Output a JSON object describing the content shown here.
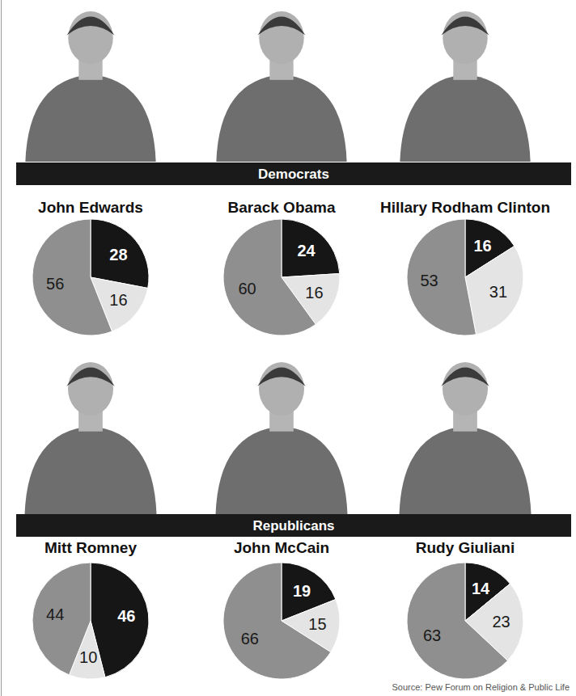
{
  "sections": [
    "Democrats",
    "Republicans"
  ],
  "source": "Source: Pew Forum on Religion & Public Life",
  "chart_data": [
    {
      "type": "pie",
      "title": "John Edwards",
      "categories": [
        null,
        null,
        null
      ],
      "values": [
        28,
        16,
        56
      ],
      "colors": [
        "#161616",
        "#e4e4e4",
        "#8f8f8f"
      ],
      "data_labels": true
    },
    {
      "type": "pie",
      "title": "Barack Obama",
      "categories": [
        null,
        null,
        null
      ],
      "values": [
        24,
        16,
        60
      ],
      "colors": [
        "#161616",
        "#e4e4e4",
        "#8f8f8f"
      ],
      "data_labels": true
    },
    {
      "type": "pie",
      "title": "Hillary Rodham Clinton",
      "categories": [
        null,
        null,
        null
      ],
      "values": [
        16,
        31,
        53
      ],
      "colors": [
        "#161616",
        "#e4e4e4",
        "#8f8f8f"
      ],
      "data_labels": true
    },
    {
      "type": "pie",
      "title": "Mitt Romney",
      "categories": [
        null,
        null,
        null
      ],
      "values": [
        46,
        10,
        44
      ],
      "colors": [
        "#161616",
        "#e4e4e4",
        "#8f8f8f"
      ],
      "data_labels": true
    },
    {
      "type": "pie",
      "title": "John McCain",
      "categories": [
        null,
        null,
        null
      ],
      "values": [
        19,
        15,
        66
      ],
      "colors": [
        "#161616",
        "#e4e4e4",
        "#8f8f8f"
      ],
      "data_labels": true
    },
    {
      "type": "pie",
      "title": "Rudy Giuliani",
      "categories": [
        null,
        null,
        null
      ],
      "values": [
        14,
        23,
        63
      ],
      "colors": [
        "#161616",
        "#e4e4e4",
        "#8f8f8f"
      ],
      "data_labels": true
    }
  ]
}
